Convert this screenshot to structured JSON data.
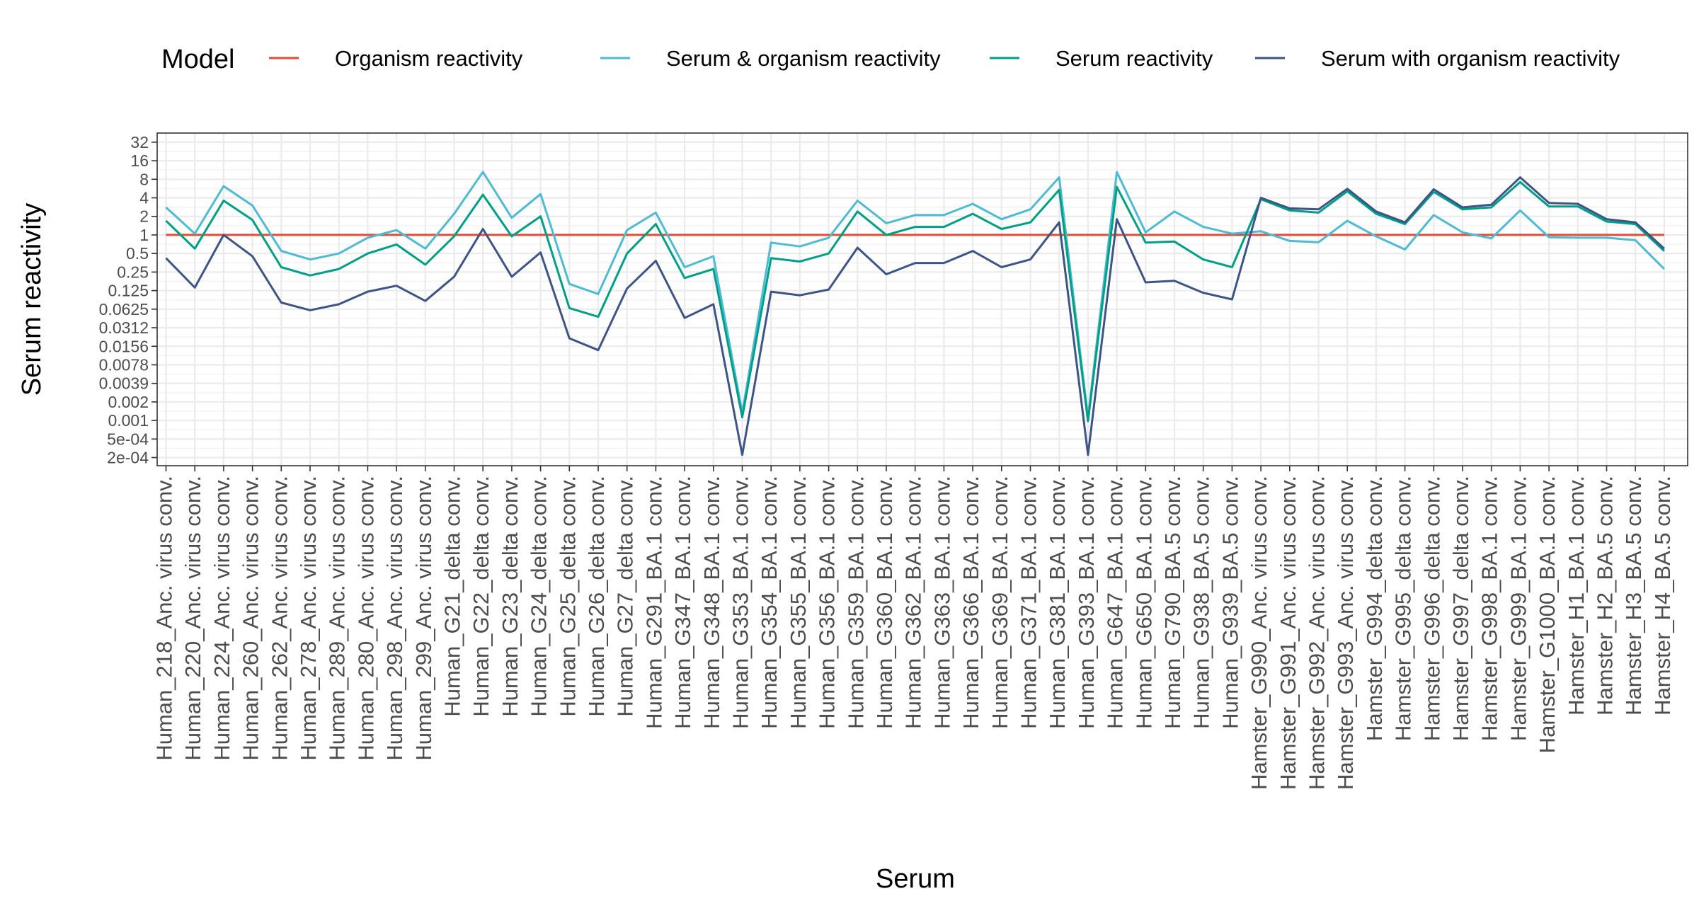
{
  "chart_data": {
    "type": "line",
    "xlabel": "Serum",
    "ylabel": "Serum reactivity",
    "y_scale": "log2",
    "ylim": [
      0.00018,
      45
    ],
    "y_ticks": [
      0.000244,
      0.000488,
      0.000977,
      0.00195,
      0.0039,
      0.0078,
      0.0156,
      0.0312,
      0.0625,
      0.125,
      0.25,
      0.5,
      1,
      2,
      4,
      8,
      16,
      32
    ],
    "y_tick_labels": [
      "2e-04",
      "5e-04",
      "0.001",
      "0.002",
      "0.0039",
      "0.0078",
      "0.0156",
      "0.0312",
      "0.0625",
      "0.125",
      "0.25",
      "0.5",
      "1",
      "2",
      "4",
      "8",
      "16",
      "32"
    ],
    "legend": {
      "title": "Model",
      "position": "top"
    },
    "grid": true,
    "categories": [
      "Human_218_Anc. virus  conv.",
      "Human_220_Anc. virus  conv.",
      "Human_224_Anc. virus  conv.",
      "Human_260_Anc. virus  conv.",
      "Human_262_Anc. virus  conv.",
      "Human_278_Anc. virus  conv.",
      "Human_289_Anc. virus  conv.",
      "Human_280_Anc. virus  conv.",
      "Human_298_Anc. virus  conv.",
      "Human_299_Anc. virus  conv.",
      "Human_G21_delta  conv.",
      "Human_G22_delta  conv.",
      "Human_G23_delta  conv.",
      "Human_G24_delta  conv.",
      "Human_G25_delta  conv.",
      "Human_G26_delta  conv.",
      "Human_G27_delta  conv.",
      "Human_G291_BA.1  conv.",
      "Human_G347_BA.1  conv.",
      "Human_G348_BA.1  conv.",
      "Human_G353_BA.1  conv.",
      "Human_G354_BA.1  conv.",
      "Human_G355_BA.1  conv.",
      "Human_G356_BA.1  conv.",
      "Human_G359_BA.1  conv.",
      "Human_G360_BA.1  conv.",
      "Human_G362_BA.1  conv.",
      "Human_G363_BA.1  conv.",
      "Human_G366_BA.1  conv.",
      "Human_G369_BA.1  conv.",
      "Human_G371_BA.1  conv.",
      "Human_G381_BA.1  conv.",
      "Human_G393_BA.1  conv.",
      "Human_G647_BA.1  conv.",
      "Human_G650_BA.1  conv.",
      "Human_G790_BA.5  conv.",
      "Human_G938_BA.5  conv.",
      "Human_G939_BA.5  conv.",
      "Hamster_G990_Anc. virus  conv.",
      "Hamster_G991_Anc. virus  conv.",
      "Hamster_G992_Anc. virus  conv.",
      "Hamster_G993_Anc. virus  conv.",
      "Hamster_G994_delta  conv.",
      "Hamster_G995_delta  conv.",
      "Hamster_G996_delta  conv.",
      "Hamster_G997_delta  conv.",
      "Hamster_G998_BA.1  conv.",
      "Hamster_G999_BA.1  conv.",
      "Hamster_G1000_BA.1  conv.",
      "Hamster_H1_BA.1  conv.",
      "Hamster_H2_BA.5  conv.",
      "Hamster_H3_BA.5  conv.",
      "Hamster_H4_BA.5  conv."
    ],
    "series": [
      {
        "name": "Organism reactivity",
        "color": "#e64b35",
        "values": [
          1,
          1,
          1,
          1,
          1,
          1,
          1,
          1,
          1,
          1,
          1,
          1,
          1,
          1,
          1,
          1,
          1,
          1,
          1,
          1,
          1,
          1,
          1,
          1,
          1,
          1,
          1,
          1,
          1,
          1,
          1,
          1,
          1,
          1,
          1,
          1,
          1,
          1,
          1,
          1,
          1,
          1,
          1,
          1,
          1,
          1,
          1,
          1,
          1,
          1,
          1,
          1,
          1
        ]
      },
      {
        "name": "Serum & organism reactivity",
        "color": "#4dbbd5",
        "values": [
          2.8,
          1.05,
          6.2,
          3.0,
          0.55,
          0.4,
          0.5,
          0.9,
          1.2,
          0.6,
          2.2,
          10.5,
          1.9,
          4.6,
          0.16,
          0.11,
          1.2,
          2.3,
          0.3,
          0.45,
          0.0013,
          0.75,
          0.65,
          0.9,
          3.6,
          1.55,
          2.1,
          2.1,
          3.2,
          1.8,
          2.6,
          8.6,
          0.0011,
          10.5,
          1.1,
          2.4,
          1.35,
          1.05,
          1.15,
          0.8,
          0.76,
          1.7,
          0.95,
          0.58,
          2.1,
          1.1,
          0.88,
          2.5,
          0.92,
          0.9,
          0.9,
          0.82,
          0.28
        ]
      },
      {
        "name": "Serum reactivity",
        "color": "#00a087",
        "values": [
          1.7,
          0.6,
          3.6,
          1.75,
          0.3,
          0.22,
          0.28,
          0.5,
          0.7,
          0.33,
          0.95,
          4.5,
          0.95,
          2.0,
          0.065,
          0.047,
          0.5,
          1.5,
          0.2,
          0.28,
          0.0011,
          0.42,
          0.37,
          0.5,
          2.4,
          1.0,
          1.35,
          1.35,
          2.2,
          1.25,
          1.6,
          5.4,
          0.00095,
          6.0,
          0.75,
          0.78,
          0.4,
          0.3,
          3.8,
          2.5,
          2.3,
          5.1,
          2.2,
          1.5,
          5.0,
          2.6,
          2.8,
          7.2,
          2.9,
          2.9,
          1.65,
          1.5,
          0.55
        ]
      },
      {
        "name": "Serum with organism reactivity",
        "color": "#3c5488",
        "values": [
          0.42,
          0.14,
          1.0,
          0.45,
          0.08,
          0.06,
          0.075,
          0.12,
          0.15,
          0.085,
          0.21,
          1.25,
          0.21,
          0.52,
          0.021,
          0.0135,
          0.135,
          0.38,
          0.045,
          0.075,
          0.00027,
          0.12,
          0.105,
          0.13,
          0.62,
          0.23,
          0.35,
          0.35,
          0.55,
          0.3,
          0.4,
          1.6,
          0.00027,
          1.8,
          0.17,
          0.18,
          0.115,
          0.09,
          4.0,
          2.7,
          2.6,
          5.6,
          2.4,
          1.6,
          5.5,
          2.8,
          3.1,
          8.6,
          3.3,
          3.2,
          1.8,
          1.6,
          0.6
        ]
      }
    ]
  }
}
